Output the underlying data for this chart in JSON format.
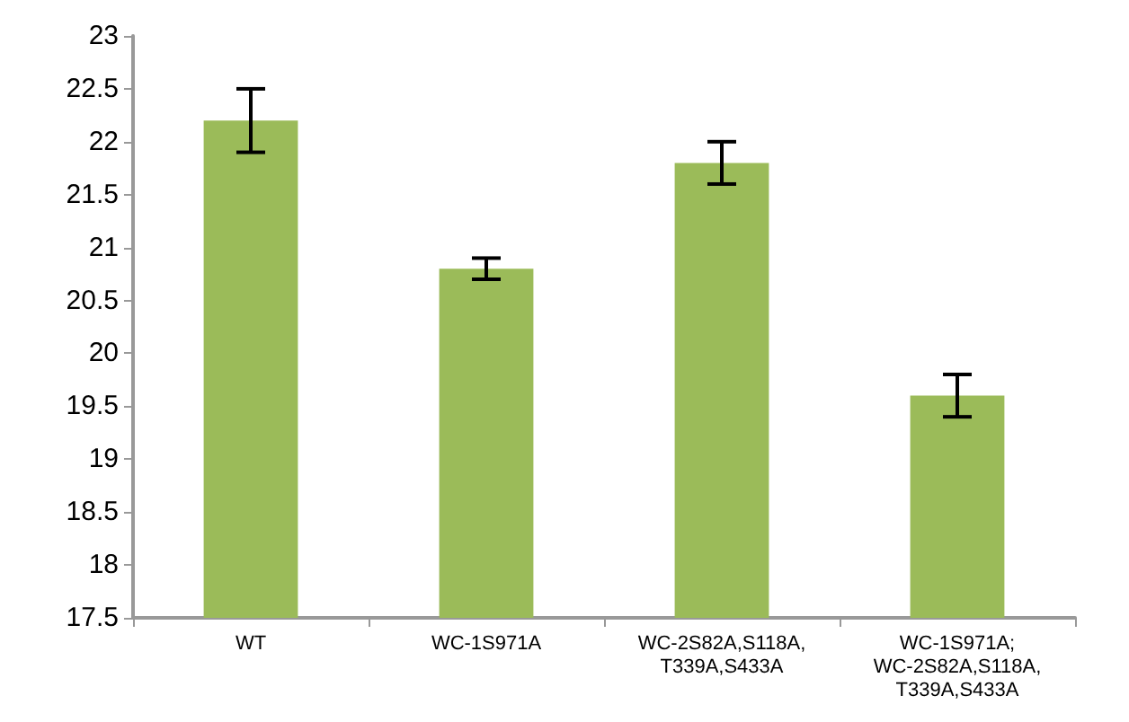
{
  "chart_data": {
    "type": "bar",
    "categories": [
      "WT",
      "WC-1S971A",
      "WC-2S82A,S118A,\nT339A,S433A",
      "WC-1S971A;\nWC-2S82A,S118A,\nT339A,S433A"
    ],
    "values": [
      22.2,
      20.8,
      21.8,
      19.6
    ],
    "errors": [
      0.3,
      0.1,
      0.2,
      0.2
    ],
    "color": "#9bbb59",
    "ylim": [
      17.5,
      23
    ],
    "yticks": [
      17.5,
      18,
      18.5,
      19,
      19.5,
      20,
      20.5,
      21,
      21.5,
      22,
      22.5,
      23
    ],
    "grid": false
  }
}
